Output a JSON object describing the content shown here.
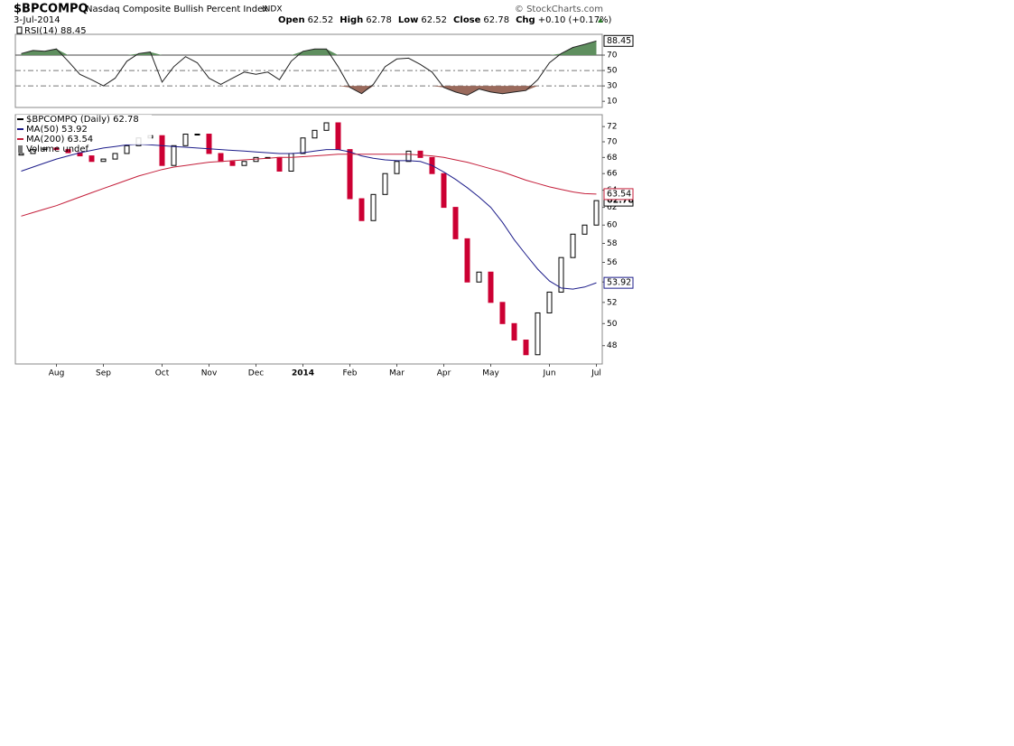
{
  "header": {
    "symbol": "$BPCOMPQ",
    "name": "Nasdaq Composite Bullish Percent Index",
    "exchange": "INDX",
    "date": "3-Jul-2014",
    "quote": [
      {
        "label": "Open",
        "value": 62.52
      },
      {
        "label": "High",
        "value": 62.78
      },
      {
        "label": "Low",
        "value": 62.52
      },
      {
        "label": "Close",
        "value": 62.78
      },
      {
        "label": "Chg",
        "value": "+0.10 (+0.17%)"
      }
    ],
    "credit": "© StockCharts.com"
  },
  "chart_data": [
    {
      "type": "line",
      "legend": "RSI(14) 88.45",
      "ylim": [
        2,
        97
      ],
      "yticks": [
        10,
        30,
        50,
        70
      ],
      "overbought_color": "#5f8f5f",
      "oversold_color": "#9a6a5c",
      "series": [
        {
          "color": "#222222",
          "values": [
            72,
            76,
            75,
            78,
            62,
            45,
            38,
            30,
            40,
            62,
            72,
            74,
            35,
            55,
            68,
            60,
            40,
            32,
            40,
            48,
            45,
            48,
            38,
            62,
            75,
            78,
            78,
            55,
            28,
            20,
            32,
            55,
            65,
            66,
            58,
            48,
            28,
            22,
            18,
            26,
            22,
            20,
            22,
            24,
            38,
            60,
            72,
            80,
            84,
            88.45
          ]
        }
      ]
    },
    {
      "type": "candlestick",
      "log": true,
      "ylim": [
        46.4,
        73.6
      ],
      "yticks": [
        48,
        50,
        52,
        54,
        56,
        58,
        60,
        62,
        64,
        66,
        68,
        70,
        72
      ],
      "categories": [
        null,
        null,
        null,
        "Aug",
        null,
        null,
        null,
        "Sep",
        null,
        null,
        null,
        null,
        "Oct",
        null,
        null,
        null,
        "Nov",
        null,
        null,
        null,
        "Dec",
        null,
        null,
        null,
        "2014",
        null,
        null,
        null,
        "Feb",
        null,
        null,
        null,
        "Mar",
        null,
        null,
        null,
        "Apr",
        null,
        null,
        null,
        "May",
        null,
        null,
        null,
        null,
        "Jun",
        null,
        null,
        null,
        "Jul"
      ],
      "extra_legend": "Volume undef",
      "series": [
        {
          "name": "$BPCOMPQ (Daily) 62.78",
          "up_color": "#000000",
          "down_color": "#cc0033",
          "open": [
            68.3,
            68.5,
            69,
            69.2,
            69,
            68.6,
            68.2,
            67.5,
            67.8,
            68.5,
            69.5,
            70.5,
            70.8,
            67,
            69.5,
            71,
            71,
            68.5,
            67.5,
            67,
            67.5,
            68,
            68,
            66.3,
            68.5,
            70.5,
            71.5,
            72.5,
            69,
            63,
            60.5,
            63.5,
            66,
            67.5,
            68.8,
            68,
            66,
            62,
            58.5,
            54,
            55,
            52,
            50,
            48.5,
            47.2,
            51,
            53,
            56.5,
            59,
            60
          ],
          "close": [
            68.5,
            69,
            69.2,
            69,
            68.6,
            68.2,
            67.5,
            67.8,
            68.5,
            69.5,
            70.5,
            70.8,
            67,
            69.5,
            71,
            71,
            68.5,
            67.5,
            67,
            67.5,
            68,
            68,
            66.3,
            68.5,
            70.5,
            71.5,
            72.5,
            69,
            63,
            60.5,
            63.5,
            66,
            67.5,
            68.8,
            68,
            66,
            62,
            58.5,
            54,
            55,
            52,
            50,
            48.5,
            47.2,
            51,
            53,
            56.5,
            59,
            60,
            62.78
          ]
        },
        {
          "name": "MA(50) 53.92",
          "color": "#1c1c8a",
          "values": [
            66.3,
            66.8,
            67.3,
            67.8,
            68.2,
            68.6,
            68.9,
            69.2,
            69.4,
            69.6,
            69.7,
            69.6,
            69.5,
            69.4,
            69.3,
            69.2,
            69.1,
            69.0,
            68.9,
            68.8,
            68.7,
            68.6,
            68.5,
            68.5,
            68.6,
            68.8,
            69.0,
            69.0,
            68.7,
            68.2,
            67.9,
            67.7,
            67.6,
            67.6,
            67.5,
            67.0,
            66.2,
            65.3,
            64.3,
            63.2,
            62.0,
            60.3,
            58.4,
            56.8,
            55.3,
            54.1,
            53.4,
            53.3,
            53.5,
            53.92
          ]
        },
        {
          "name": "MA(200) 63.54",
          "color": "#c41e3a",
          "values": [
            61.0,
            61.4,
            61.8,
            62.2,
            62.7,
            63.2,
            63.7,
            64.2,
            64.7,
            65.2,
            65.7,
            66.1,
            66.5,
            66.8,
            67.0,
            67.2,
            67.4,
            67.5,
            67.6,
            67.7,
            67.8,
            67.9,
            68.0,
            68.0,
            68.1,
            68.2,
            68.3,
            68.4,
            68.4,
            68.4,
            68.4,
            68.4,
            68.4,
            68.4,
            68.3,
            68.2,
            68.0,
            67.7,
            67.4,
            67.0,
            66.6,
            66.2,
            65.7,
            65.2,
            64.8,
            64.4,
            64.1,
            63.8,
            63.6,
            63.54
          ]
        }
      ]
    }
  ]
}
